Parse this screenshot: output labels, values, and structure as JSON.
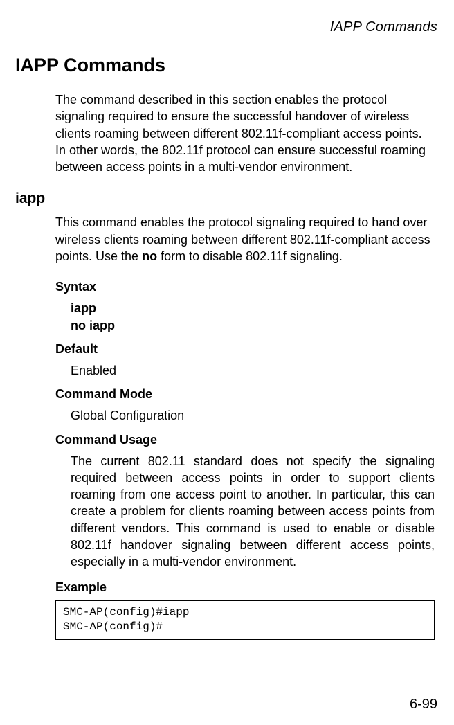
{
  "header": {
    "running_title": "IAPP Commands"
  },
  "section": {
    "title": "IAPP Commands",
    "intro": "The command described in this section enables the protocol signaling required to ensure the successful handover of wireless clients roaming between different 802.11f-compliant access points. In other words, the 802.11f protocol can ensure successful roaming between access points in a multi-vendor environment."
  },
  "command": {
    "name": "iapp",
    "description_prefix": "This command enables the protocol signaling required to hand over wireless clients roaming between different 802.11f-compliant access points. Use the ",
    "description_bold": "no",
    "description_suffix": " form to disable 802.11f signaling.",
    "syntax_label": "Syntax",
    "syntax_line1": "iapp",
    "syntax_line2": "no iapp",
    "default_label": "Default",
    "default_value": "Enabled",
    "mode_label": "Command Mode",
    "mode_value": "Global Configuration",
    "usage_label": "Command Usage",
    "usage_text": "The current 802.11 standard does not specify the signaling required between access points in order to support clients roaming from one access point to another. In particular, this can create a problem for clients roaming between access points from different vendors. This command is used to enable or disable 802.11f handover signaling between different access points, especially in a multi-vendor environment.",
    "example_label": "Example",
    "example_code": "SMC-AP(config)#iapp\nSMC-AP(config)#"
  },
  "footer": {
    "page_number": "6-99"
  },
  "style": {
    "body_font_size_pt": 13,
    "heading_font_size_pt": 20,
    "subheading_font_size_pt": 16,
    "code_font_family": "Courier New",
    "text_color": "#000000",
    "background_color": "#ffffff",
    "border_color": "#000000"
  }
}
